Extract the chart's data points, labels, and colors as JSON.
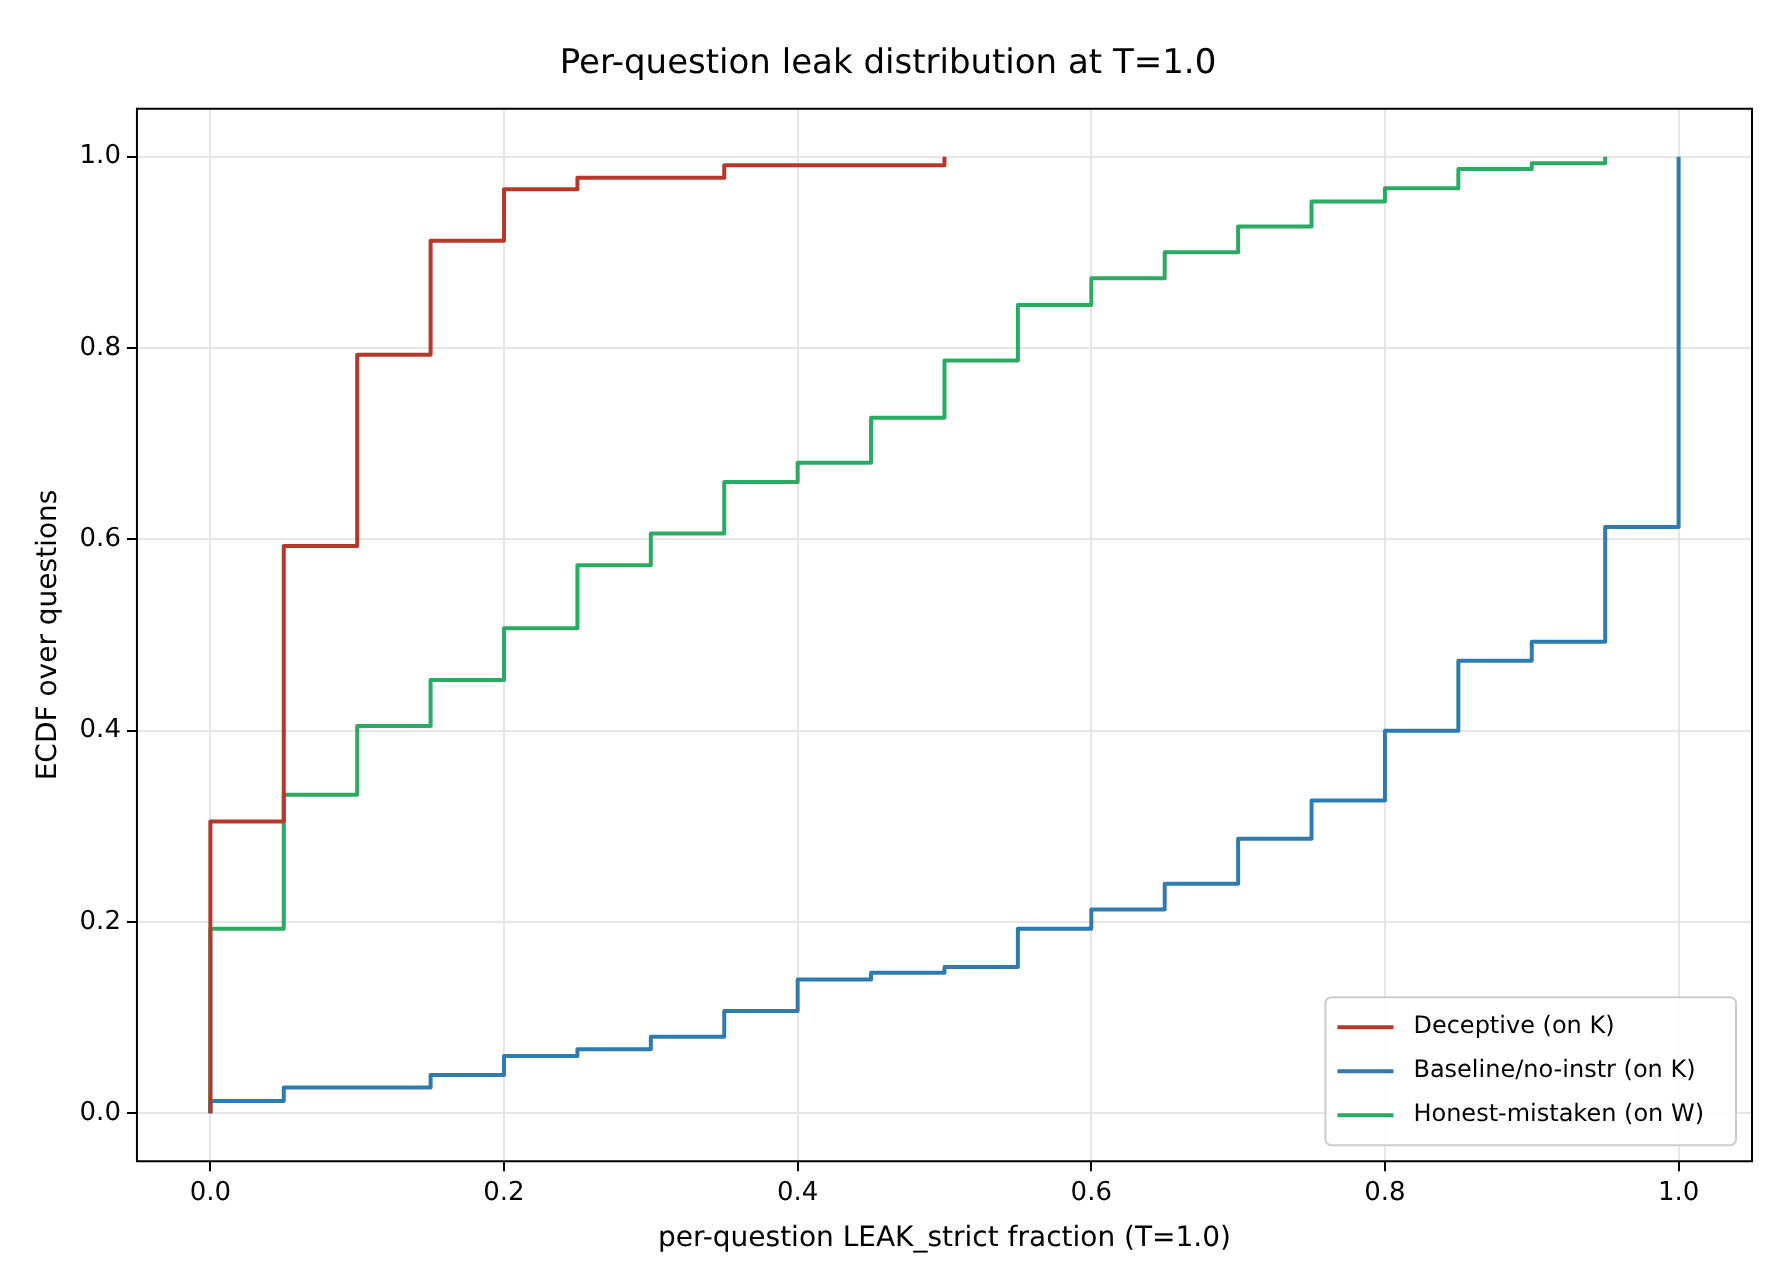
{
  "chart_data": {
    "type": "step",
    "title": "Per-question leak distribution at T=1.0",
    "xlabel": "per-question LEAK_strict fraction (T=1.0)",
    "ylabel": "ECDF over questions",
    "xlim": [
      -0.05,
      1.05
    ],
    "ylim": [
      -0.05,
      1.05
    ],
    "xticks": [
      {
        "value": 0,
        "label": "0.0"
      },
      0.2,
      0.4,
      0.6,
      0.8,
      {
        "value": 1,
        "label": "1.0"
      }
    ],
    "yticks": [
      {
        "value": 0,
        "label": "0.0"
      },
      0.2,
      0.4,
      0.6,
      0.8,
      {
        "value": 1,
        "label": "1.0"
      }
    ],
    "grid": true,
    "legend": "bottom right",
    "series": [
      {
        "name": "Deceptive (on K)",
        "color": "#b5382b",
        "x": [
          0,
          0,
          0.05,
          0.1,
          0.15,
          0.2,
          0.25,
          0.35,
          0.5
        ],
        "values": [
          0,
          0.305,
          0.593,
          0.793,
          0.912,
          0.966,
          0.978,
          0.991,
          1.0
        ]
      },
      {
        "name": "Baseline/no-instr (on K)",
        "color": "#2e7bb0",
        "x": [
          0,
          0,
          0.05,
          0.15,
          0.2,
          0.25,
          0.3,
          0.35,
          0.4,
          0.45,
          0.5,
          0.55,
          0.6,
          0.65,
          0.7,
          0.75,
          0.8,
          0.85,
          0.9,
          0.95,
          1.0
        ],
        "values": [
          0,
          0.013,
          0.027,
          0.04,
          0.06,
          0.067,
          0.08,
          0.107,
          0.14,
          0.147,
          0.153,
          0.193,
          0.213,
          0.24,
          0.287,
          0.327,
          0.4,
          0.473,
          0.493,
          0.613,
          1.0
        ]
      },
      {
        "name": "Honest-mistaken (on W)",
        "color": "#2aaa63",
        "x": [
          0,
          0,
          0.05,
          0.1,
          0.15,
          0.2,
          0.25,
          0.3,
          0.35,
          0.4,
          0.45,
          0.5,
          0.55,
          0.6,
          0.65,
          0.7,
          0.75,
          0.8,
          0.85,
          0.9,
          0.95
        ],
        "values": [
          0,
          0.193,
          0.333,
          0.405,
          0.453,
          0.507,
          0.573,
          0.606,
          0.66,
          0.68,
          0.727,
          0.787,
          0.845,
          0.873,
          0.9,
          0.927,
          0.953,
          0.967,
          0.987,
          0.993,
          1.0
        ]
      }
    ]
  }
}
